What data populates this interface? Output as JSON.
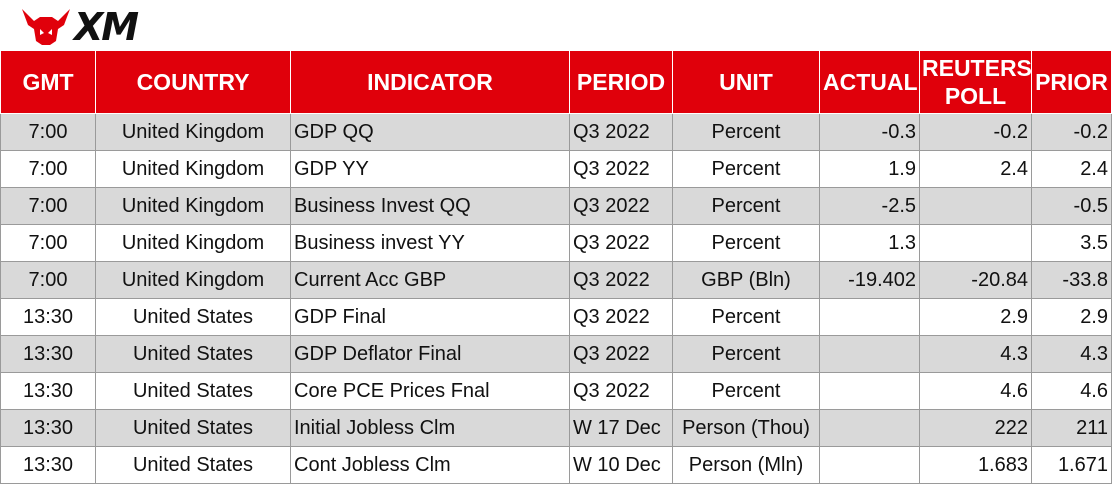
{
  "brand": {
    "name": "XM",
    "accent": "#e0000b"
  },
  "table": {
    "headers": {
      "gmt": "GMT",
      "country": "COUNTRY",
      "indicator": "INDICATOR",
      "period": "PERIOD",
      "unit": "UNIT",
      "actual": "ACTUAL",
      "poll_line1": "REUTERS",
      "poll_line2": "POLL",
      "prior": "PRIOR"
    },
    "rows": [
      {
        "gmt": "7:00",
        "country": "United Kingdom",
        "indicator": "GDP QQ",
        "period": "Q3 2022",
        "unit": "Percent",
        "actual": "-0.3",
        "poll": "-0.2",
        "prior": "-0.2"
      },
      {
        "gmt": "7:00",
        "country": "United Kingdom",
        "indicator": "GDP YY",
        "period": "Q3 2022",
        "unit": "Percent",
        "actual": "1.9",
        "poll": "2.4",
        "prior": "2.4"
      },
      {
        "gmt": "7:00",
        "country": "United Kingdom",
        "indicator": "Business Invest QQ",
        "period": "Q3 2022",
        "unit": "Percent",
        "actual": "-2.5",
        "poll": "",
        "prior": "-0.5"
      },
      {
        "gmt": "7:00",
        "country": "United Kingdom",
        "indicator": "Business invest YY",
        "period": "Q3 2022",
        "unit": "Percent",
        "actual": "1.3",
        "poll": "",
        "prior": "3.5"
      },
      {
        "gmt": "7:00",
        "country": "United Kingdom",
        "indicator": "Current Acc GBP",
        "period": "Q3 2022",
        "unit": "GBP (Bln)",
        "actual": "-19.402",
        "poll": "-20.84",
        "prior": "-33.8"
      },
      {
        "gmt": "13:30",
        "country": "United States",
        "indicator": "GDP Final",
        "period": "Q3 2022",
        "unit": "Percent",
        "actual": "",
        "poll": "2.9",
        "prior": "2.9"
      },
      {
        "gmt": "13:30",
        "country": "United States",
        "indicator": "GDP Deflator Final",
        "period": "Q3 2022",
        "unit": "Percent",
        "actual": "",
        "poll": "4.3",
        "prior": "4.3"
      },
      {
        "gmt": "13:30",
        "country": "United States",
        "indicator": "Core PCE Prices Fnal",
        "period": "Q3 2022",
        "unit": "Percent",
        "actual": "",
        "poll": "4.6",
        "prior": "4.6"
      },
      {
        "gmt": "13:30",
        "country": "United States",
        "indicator": "Initial Jobless Clm",
        "period": "W 17 Dec",
        "unit": "Person (Thou)",
        "actual": "",
        "poll": "222",
        "prior": "211"
      },
      {
        "gmt": "13:30",
        "country": "United States",
        "indicator": "Cont Jobless Clm",
        "period": "W 10 Dec",
        "unit": "Person (Mln)",
        "actual": "",
        "poll": "1.683",
        "prior": "1.671"
      }
    ]
  }
}
